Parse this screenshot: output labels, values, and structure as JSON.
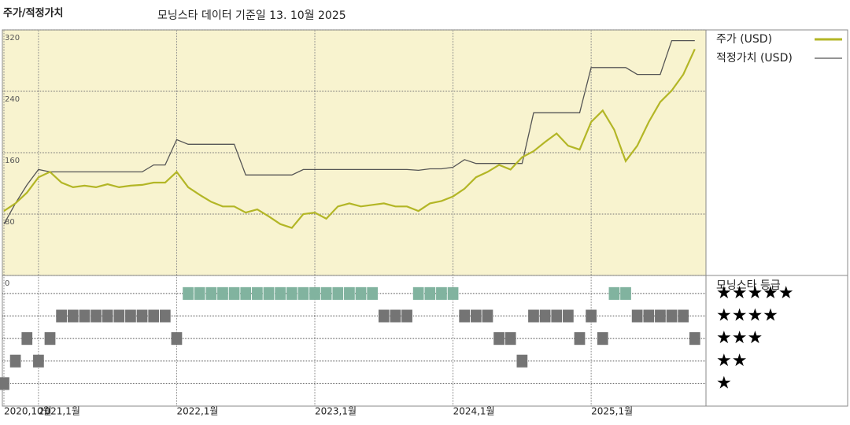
{
  "chart_data": {
    "type": "line",
    "title": "주가/적정가치",
    "subtitle": "모닝스타 데이터 기준일 13. 10월 2025",
    "x": [
      "2020-10",
      "2020-11",
      "2020-12",
      "2021-01",
      "2021-02",
      "2021-03",
      "2021-04",
      "2021-05",
      "2021-06",
      "2021-07",
      "2021-08",
      "2021-09",
      "2021-10",
      "2021-11",
      "2021-12",
      "2022-01",
      "2022-02",
      "2022-03",
      "2022-04",
      "2022-05",
      "2022-06",
      "2022-07",
      "2022-08",
      "2022-09",
      "2022-10",
      "2022-11",
      "2022-12",
      "2023-01",
      "2023-02",
      "2023-03",
      "2023-04",
      "2023-05",
      "2023-06",
      "2023-07",
      "2023-08",
      "2023-09",
      "2023-10",
      "2023-11",
      "2023-12",
      "2024-01",
      "2024-02",
      "2024-03",
      "2024-04",
      "2024-05",
      "2024-06",
      "2024-07",
      "2024-08",
      "2024-09",
      "2024-10",
      "2024-11",
      "2024-12",
      "2025-01",
      "2025-02",
      "2025-03",
      "2025-04",
      "2025-05",
      "2025-06",
      "2025-07",
      "2025-08",
      "2025-09",
      "2025-10"
    ],
    "series": [
      {
        "name": "주가 (USD)",
        "color": "#b3b626",
        "values": [
          84,
          94,
          108,
          128,
          135,
          121,
          115,
          117,
          115,
          119,
          115,
          117,
          118,
          121,
          121,
          135,
          115,
          105,
          96,
          90,
          90,
          82,
          86,
          77,
          67,
          62,
          80,
          82,
          74,
          90,
          94,
          90,
          92,
          94,
          90,
          90,
          84,
          94,
          97,
          103,
          113,
          128,
          135,
          144,
          138,
          154,
          162,
          174,
          185,
          169,
          164,
          200,
          215,
          190,
          149,
          169,
          200,
          226,
          241,
          262,
          295
        ]
      },
      {
        "name": "적정가치 (USD)",
        "color": "#555555",
        "values": [
          67,
          94,
          118,
          138,
          135,
          135,
          135,
          135,
          135,
          135,
          135,
          135,
          135,
          144,
          144,
          177,
          171,
          171,
          171,
          171,
          171,
          131,
          131,
          131,
          131,
          131,
          138,
          138,
          138,
          138,
          138,
          138,
          138,
          138,
          138,
          138,
          137,
          139,
          139,
          141,
          151,
          146,
          146,
          146,
          146,
          146,
          212,
          212,
          212,
          212,
          212,
          271,
          271,
          271,
          271,
          262,
          262,
          262,
          306,
          306,
          306
        ]
      }
    ],
    "ylim": [
      0,
      320
    ],
    "yticks": [
      0,
      80,
      160,
      240,
      320
    ],
    "xticks": [
      {
        "value": "2020-10",
        "label": "2020,10월"
      },
      {
        "value": "2021-01",
        "label": "2021,1월"
      },
      {
        "value": "2022-01",
        "label": "2022,1월"
      },
      {
        "value": "2023-01",
        "label": "2023,1월"
      },
      {
        "value": "2024-01",
        "label": "2024,1월"
      },
      {
        "value": "2025-01",
        "label": "2025,1월"
      }
    ],
    "rating": {
      "title": "모닝스타 등급",
      "values": [
        1,
        2,
        3,
        2,
        3,
        4,
        4,
        4,
        4,
        4,
        4,
        4,
        4,
        4,
        4,
        3,
        5,
        5,
        5,
        5,
        5,
        5,
        5,
        5,
        5,
        5,
        5,
        5,
        5,
        5,
        5,
        5,
        5,
        4,
        4,
        4,
        5,
        5,
        5,
        5,
        4,
        4,
        4,
        3,
        3,
        2,
        4,
        4,
        4,
        4,
        3,
        4,
        3,
        5,
        5,
        4,
        4,
        4,
        4,
        4,
        3
      ],
      "ylim": [
        0,
        5.8
      ],
      "yticks": [
        {
          "value": 5,
          "label": "★★★★★"
        },
        {
          "value": 4,
          "label": "★★★★"
        },
        {
          "value": 3,
          "label": "★★★"
        },
        {
          "value": 2,
          "label": "★★"
        },
        {
          "value": 1,
          "label": "★"
        }
      ],
      "colors": {
        "top": "#3d8a6c",
        "other": "#2a2a2a"
      }
    }
  }
}
